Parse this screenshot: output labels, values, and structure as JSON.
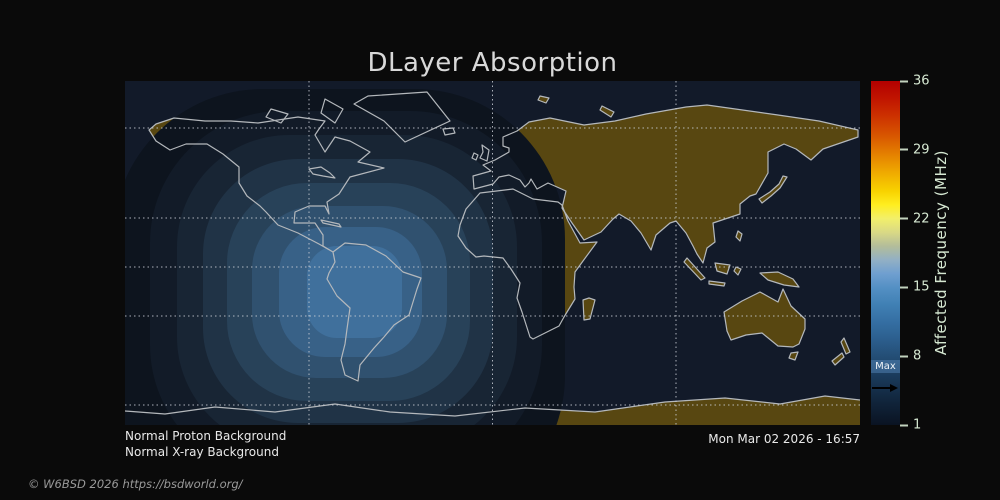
{
  "title": "DLayer Absorption",
  "colorbar": {
    "label": "Affected Frequency (MHz)",
    "ticks": [
      36,
      29,
      22,
      15,
      8,
      1
    ],
    "tick_min": 1,
    "tick_max": 36,
    "max_marker_label": "Max",
    "gradient_stops": [
      [
        0.0,
        "#b20000"
      ],
      [
        0.05,
        "#c01400"
      ],
      [
        0.1,
        "#cc3000"
      ],
      [
        0.16,
        "#d85700"
      ],
      [
        0.22,
        "#e68600"
      ],
      [
        0.27,
        "#f0ad00"
      ],
      [
        0.32,
        "#f8d200"
      ],
      [
        0.36,
        "#ffee20"
      ],
      [
        0.4,
        "#f2ef6a"
      ],
      [
        0.44,
        "#d9d985"
      ],
      [
        0.48,
        "#b3bd9a"
      ],
      [
        0.52,
        "#92b0c4"
      ],
      [
        0.56,
        "#6f9fd0"
      ],
      [
        0.6,
        "#5490c4"
      ],
      [
        0.65,
        "#4080b4"
      ],
      [
        0.7,
        "#356fa3"
      ],
      [
        0.75,
        "#2c5f8e"
      ],
      [
        0.8,
        "#244e76"
      ],
      [
        0.86,
        "#1a3a5a"
      ],
      [
        0.92,
        "#122840"
      ],
      [
        1.0,
        "#0a1322"
      ]
    ]
  },
  "map": {
    "band_colors": [
      "#0d141e",
      "#121b28",
      "#182534",
      "#203346",
      "#284259",
      "#30516f",
      "#386187",
      "#40709c"
    ],
    "ocean_color": "#121a29",
    "land_color": "#584711",
    "coastline_color": "#b4b8bc",
    "gridline_color": "#c9cdd5"
  },
  "annotations": {
    "proton_status": "Normal Proton Background",
    "xray_status": "Normal X-ray Background",
    "timestamp": "Mon Mar 02 2026 - 16:57"
  },
  "footer": {
    "copyright": "© W6BSD 2026 https://bsdworld.org/"
  },
  "colors": {
    "background": "#0a0a0a",
    "title_text": "#d9d9d9",
    "annotation_text": "#e9e9e9",
    "tick_text": "#d6e8d2",
    "copyright_text": "#9a9a9a"
  }
}
